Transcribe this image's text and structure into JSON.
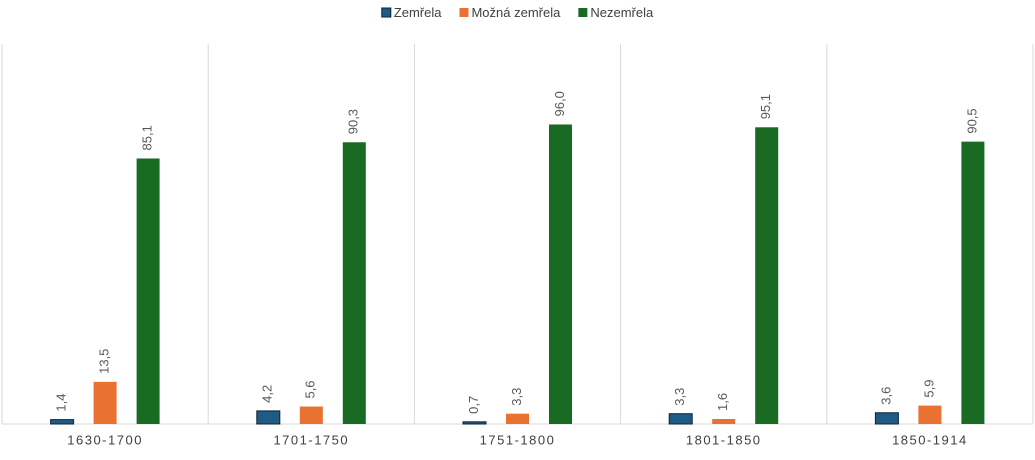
{
  "chart_data": {
    "type": "bar",
    "categories": [
      "1630-1700",
      "1701-1750",
      "1751-1800",
      "1801-1850",
      "1850-1914"
    ],
    "series": [
      {
        "name": "Zemřela",
        "color": "#1f5c85",
        "values": [
          1.4,
          4.2,
          0.7,
          3.3,
          3.6
        ],
        "value_labels": [
          "1,4",
          "4,2",
          "0,7",
          "3,3",
          "3,6"
        ]
      },
      {
        "name": "Možná zemřela",
        "color": "#e97132",
        "values": [
          13.5,
          5.6,
          3.3,
          1.6,
          5.9
        ],
        "value_labels": [
          "13,5",
          "5,6",
          "3,3",
          "1,6",
          "5,9"
        ]
      },
      {
        "name": "Nezemřela",
        "color": "#196b24",
        "values": [
          85.1,
          90.3,
          96.0,
          95.1,
          90.5
        ],
        "value_labels": [
          "85,1",
          "90,3",
          "96,0",
          "95,1",
          "90,5"
        ]
      }
    ],
    "ylim": [
      0,
      120
    ],
    "legend": "top"
  }
}
